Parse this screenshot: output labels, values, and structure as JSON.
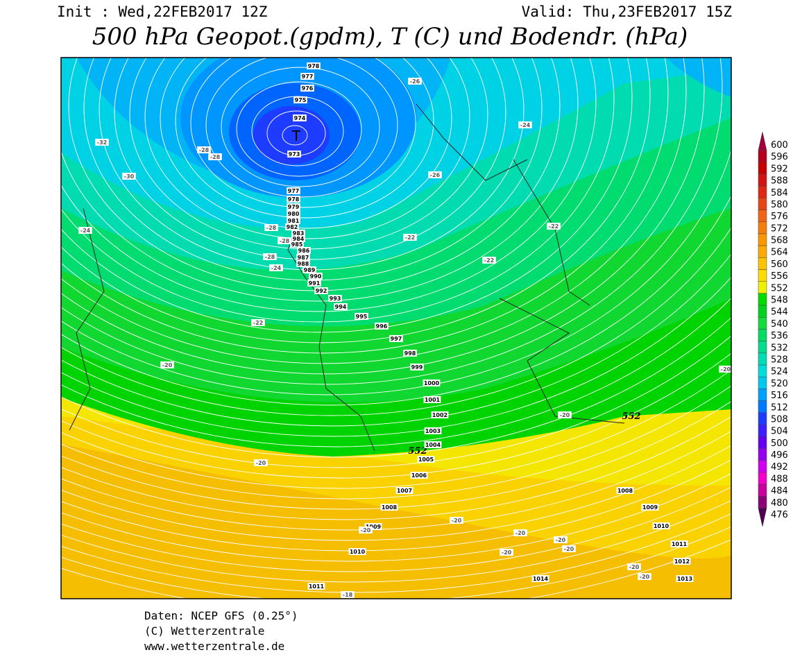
{
  "header": {
    "init": "Init : Wed,22FEB2017 12Z",
    "valid": "Valid: Thu,23FEB2017 15Z",
    "title": "500 hPa Geopot.(gpdm), T (C) und Bodendr. (hPa)"
  },
  "map": {
    "low_marker": "T",
    "contour_labels": [
      "552",
      "552"
    ],
    "isobar_labels": [
      "978",
      "977",
      "976",
      "975",
      "974",
      "973",
      "977",
      "978",
      "979",
      "980",
      "981",
      "982",
      "983",
      "984",
      "985",
      "986",
      "987",
      "988",
      "989",
      "990",
      "991",
      "992",
      "993",
      "994",
      "995",
      "996",
      "997",
      "998",
      "999",
      "1000",
      "1001",
      "1002",
      "1003",
      "1004",
      "1005",
      "1006",
      "1007",
      "1008",
      "1009",
      "1010",
      "1011",
      "1008",
      "1009",
      "1010",
      "1011",
      "1012",
      "1013",
      "1014"
    ],
    "temperature_labels": [
      "-32",
      "-30",
      "-28",
      "-28",
      "-24",
      "-28",
      "-28",
      "-28",
      "-24",
      "-26",
      "-24",
      "-26",
      "-22",
      "-22",
      "-22",
      "-22",
      "-20",
      "-20",
      "-20",
      "-20",
      "-20",
      "-20",
      "-20",
      "-20",
      "-20",
      "-20",
      "-20",
      "-20",
      "-18"
    ]
  },
  "colorbar": {
    "levels": [
      600,
      596,
      592,
      588,
      584,
      580,
      576,
      572,
      568,
      564,
      560,
      556,
      552,
      548,
      544,
      540,
      536,
      532,
      528,
      524,
      520,
      516,
      512,
      508,
      504,
      500,
      496,
      492,
      488,
      484,
      480,
      476
    ],
    "colors": [
      "#a0003c",
      "#b4001e",
      "#c80000",
      "#d21414",
      "#dc2814",
      "#e64614",
      "#f06414",
      "#f57d0a",
      "#fa9600",
      "#ffaa00",
      "#ffc300",
      "#ffdc00",
      "#f0f000",
      "#00dc00",
      "#00d21e",
      "#14dc3c",
      "#00dc64",
      "#00dc8c",
      "#00dcb4",
      "#00dcdc",
      "#00c8f0",
      "#00a0ff",
      "#0078ff",
      "#1e3cff",
      "#3c1eff",
      "#6400f0",
      "#9600f0",
      "#d200f0",
      "#f000c8",
      "#c8009c",
      "#8c0078",
      "#500050"
    ]
  },
  "footer": {
    "source": "Daten: NCEP GFS (0.25°)",
    "copyright": "(C) Wetterzentrale",
    "url": "www.wetterzentrale.de"
  }
}
